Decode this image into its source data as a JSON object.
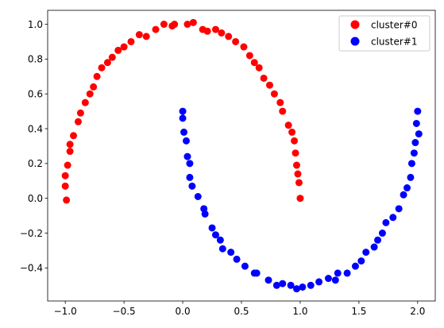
{
  "chart_data": {
    "type": "scatter",
    "title": "",
    "xlabel": "",
    "ylabel": "",
    "xlim": [
      -1.15,
      2.15
    ],
    "ylim": [
      -0.59,
      1.08
    ],
    "x_ticks": [
      "−1.0",
      "−0.5",
      "0.0",
      "0.5",
      "1.0",
      "1.5",
      "2.0"
    ],
    "x_tick_values": [
      -1.0,
      -0.5,
      0.0,
      0.5,
      1.0,
      1.5,
      2.0
    ],
    "y_ticks": [
      "−0.4",
      "−0.2",
      "0.0",
      "0.2",
      "0.4",
      "0.6",
      "0.8",
      "1.0"
    ],
    "y_tick_values": [
      -0.4,
      -0.2,
      0.0,
      0.2,
      0.4,
      0.6,
      0.8,
      1.0
    ],
    "grid": false,
    "legend_position": "top-right",
    "series": [
      {
        "name": "cluster#0",
        "color": "#ff0000",
        "points": [
          [
            -1.0,
            0.13
          ],
          [
            -1.0,
            0.07
          ],
          [
            -0.99,
            -0.01
          ],
          [
            -0.98,
            0.19
          ],
          [
            -0.96,
            0.27
          ],
          [
            -0.96,
            0.31
          ],
          [
            -0.93,
            0.36
          ],
          [
            -0.89,
            0.44
          ],
          [
            -0.87,
            0.49
          ],
          [
            -0.83,
            0.55
          ],
          [
            -0.79,
            0.6
          ],
          [
            -0.76,
            0.64
          ],
          [
            -0.73,
            0.7
          ],
          [
            -0.69,
            0.75
          ],
          [
            -0.64,
            0.78
          ],
          [
            -0.6,
            0.81
          ],
          [
            -0.55,
            0.85
          ],
          [
            -0.5,
            0.87
          ],
          [
            -0.44,
            0.9
          ],
          [
            -0.37,
            0.94
          ],
          [
            -0.31,
            0.93
          ],
          [
            -0.23,
            0.97
          ],
          [
            -0.16,
            1.0
          ],
          [
            -0.09,
            0.99
          ],
          [
            -0.07,
            1.0
          ],
          [
            0.04,
            1.0
          ],
          [
            0.09,
            1.01
          ],
          [
            0.17,
            0.97
          ],
          [
            0.21,
            0.96
          ],
          [
            0.28,
            0.97
          ],
          [
            0.33,
            0.95
          ],
          [
            0.39,
            0.93
          ],
          [
            0.45,
            0.9
          ],
          [
            0.52,
            0.87
          ],
          [
            0.57,
            0.82
          ],
          [
            0.61,
            0.78
          ],
          [
            0.65,
            0.75
          ],
          [
            0.69,
            0.69
          ],
          [
            0.74,
            0.65
          ],
          [
            0.78,
            0.6
          ],
          [
            0.83,
            0.55
          ],
          [
            0.85,
            0.5
          ],
          [
            0.9,
            0.42
          ],
          [
            0.93,
            0.38
          ],
          [
            0.95,
            0.33
          ],
          [
            0.96,
            0.26
          ],
          [
            0.97,
            0.19
          ],
          [
            0.98,
            0.14
          ],
          [
            0.99,
            0.09
          ],
          [
            1.0,
            0.0
          ]
        ]
      },
      {
        "name": "cluster#1",
        "color": "#0000ff",
        "points": [
          [
            0.0,
            0.5
          ],
          [
            0.0,
            0.46
          ],
          [
            0.01,
            0.38
          ],
          [
            0.03,
            0.33
          ],
          [
            0.04,
            0.24
          ],
          [
            0.06,
            0.2
          ],
          [
            0.06,
            0.12
          ],
          [
            0.08,
            0.07
          ],
          [
            0.13,
            0.01
          ],
          [
            0.18,
            -0.06
          ],
          [
            0.19,
            -0.09
          ],
          [
            0.25,
            -0.17
          ],
          [
            0.28,
            -0.21
          ],
          [
            0.32,
            -0.24
          ],
          [
            0.34,
            -0.29
          ],
          [
            0.41,
            -0.31
          ],
          [
            0.46,
            -0.35
          ],
          [
            0.53,
            -0.39
          ],
          [
            0.61,
            -0.43
          ],
          [
            0.63,
            -0.43
          ],
          [
            0.73,
            -0.47
          ],
          [
            0.8,
            -0.5
          ],
          [
            0.85,
            -0.49
          ],
          [
            0.92,
            -0.5
          ],
          [
            0.97,
            -0.52
          ],
          [
            1.02,
            -0.51
          ],
          [
            1.09,
            -0.5
          ],
          [
            1.16,
            -0.48
          ],
          [
            1.24,
            -0.46
          ],
          [
            1.3,
            -0.47
          ],
          [
            1.32,
            -0.43
          ],
          [
            1.4,
            -0.43
          ],
          [
            1.47,
            -0.39
          ],
          [
            1.52,
            -0.36
          ],
          [
            1.56,
            -0.31
          ],
          [
            1.63,
            -0.28
          ],
          [
            1.66,
            -0.24
          ],
          [
            1.7,
            -0.2
          ],
          [
            1.73,
            -0.14
          ],
          [
            1.79,
            -0.11
          ],
          [
            1.84,
            -0.06
          ],
          [
            1.88,
            0.02
          ],
          [
            1.91,
            0.06
          ],
          [
            1.94,
            0.12
          ],
          [
            1.95,
            0.2
          ],
          [
            1.97,
            0.26
          ],
          [
            1.98,
            0.32
          ],
          [
            1.99,
            0.43
          ],
          [
            2.01,
            0.37
          ],
          [
            2.0,
            0.5
          ]
        ]
      }
    ]
  }
}
